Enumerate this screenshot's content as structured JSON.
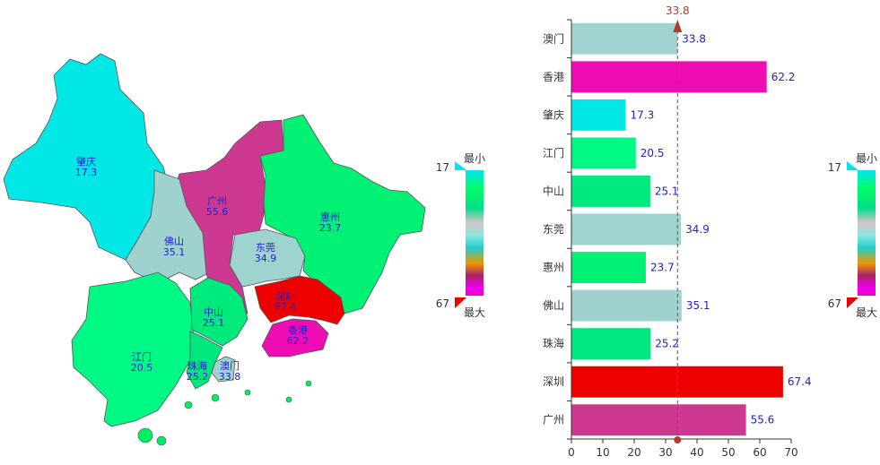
{
  "chart_data": [
    {
      "type": "map",
      "regions": [
        {
          "name": "肇庆",
          "value": 17.3
        },
        {
          "name": "佛山",
          "value": 35.1
        },
        {
          "name": "广州",
          "value": 55.6
        },
        {
          "name": "惠州",
          "value": 23.7
        },
        {
          "name": "东莞",
          "value": 34.9
        },
        {
          "name": "深圳",
          "value": 67.4
        },
        {
          "name": "江门",
          "value": 20.5
        },
        {
          "name": "中山",
          "value": 25.1
        },
        {
          "name": "珠海",
          "value": 25.2
        },
        {
          "name": "澳门",
          "value": 33.8
        },
        {
          "name": "香港",
          "value": 62.2
        }
      ],
      "visual_map": {
        "min": 17,
        "max": 67,
        "min_label": "最小",
        "max_label": "最大",
        "placement": "right"
      }
    },
    {
      "type": "bar",
      "orientation": "horizontal",
      "categories": [
        "广州",
        "深圳",
        "珠海",
        "佛山",
        "惠州",
        "东莞",
        "中山",
        "江门",
        "肇庆",
        "香港",
        "澳门"
      ],
      "values": [
        55.6,
        67.4,
        25.2,
        35.1,
        23.7,
        34.9,
        25.1,
        20.5,
        17.3,
        62.2,
        33.8
      ],
      "xlim": [
        0,
        70
      ],
      "x_ticks": [
        0,
        10,
        20,
        30,
        40,
        50,
        60,
        70
      ],
      "mark_line": {
        "value": 33.8,
        "label": "33.8",
        "color": "#b03a2e"
      },
      "data_labels": true,
      "visual_map": {
        "min": 17,
        "max": 67,
        "min_label": "最小",
        "max_label": "最大",
        "placement": "right"
      }
    }
  ]
}
